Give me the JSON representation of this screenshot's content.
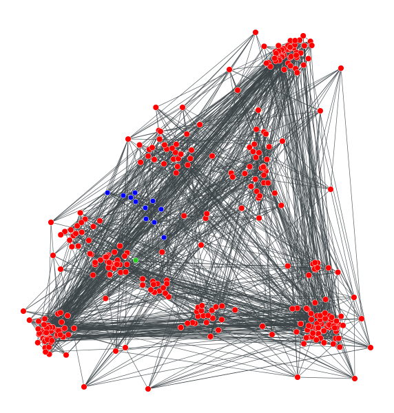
{
  "graph": {
    "type": "network",
    "layout": "force-directed",
    "node_counts": {
      "red": 330,
      "blue": 11,
      "green": 1
    },
    "colors": {
      "edge": "#3c4448",
      "node_red": "#ff0000",
      "node_blue": "#0000ff",
      "node_green": "#22cc22"
    },
    "clusters": [
      {
        "id": "top-right",
        "color": "red"
      },
      {
        "id": "upper-middle",
        "color": "red"
      },
      {
        "id": "center-right-column",
        "color": "red"
      },
      {
        "id": "center-left",
        "color": "red"
      },
      {
        "id": "left-middle",
        "color": "red"
      },
      {
        "id": "bottom-left",
        "color": "red"
      },
      {
        "id": "bottom-right",
        "color": "red"
      },
      {
        "id": "bottom-center",
        "color": "red"
      },
      {
        "id": "blue-group",
        "color": "blue"
      },
      {
        "id": "green-node",
        "color": "green"
      }
    ]
  }
}
